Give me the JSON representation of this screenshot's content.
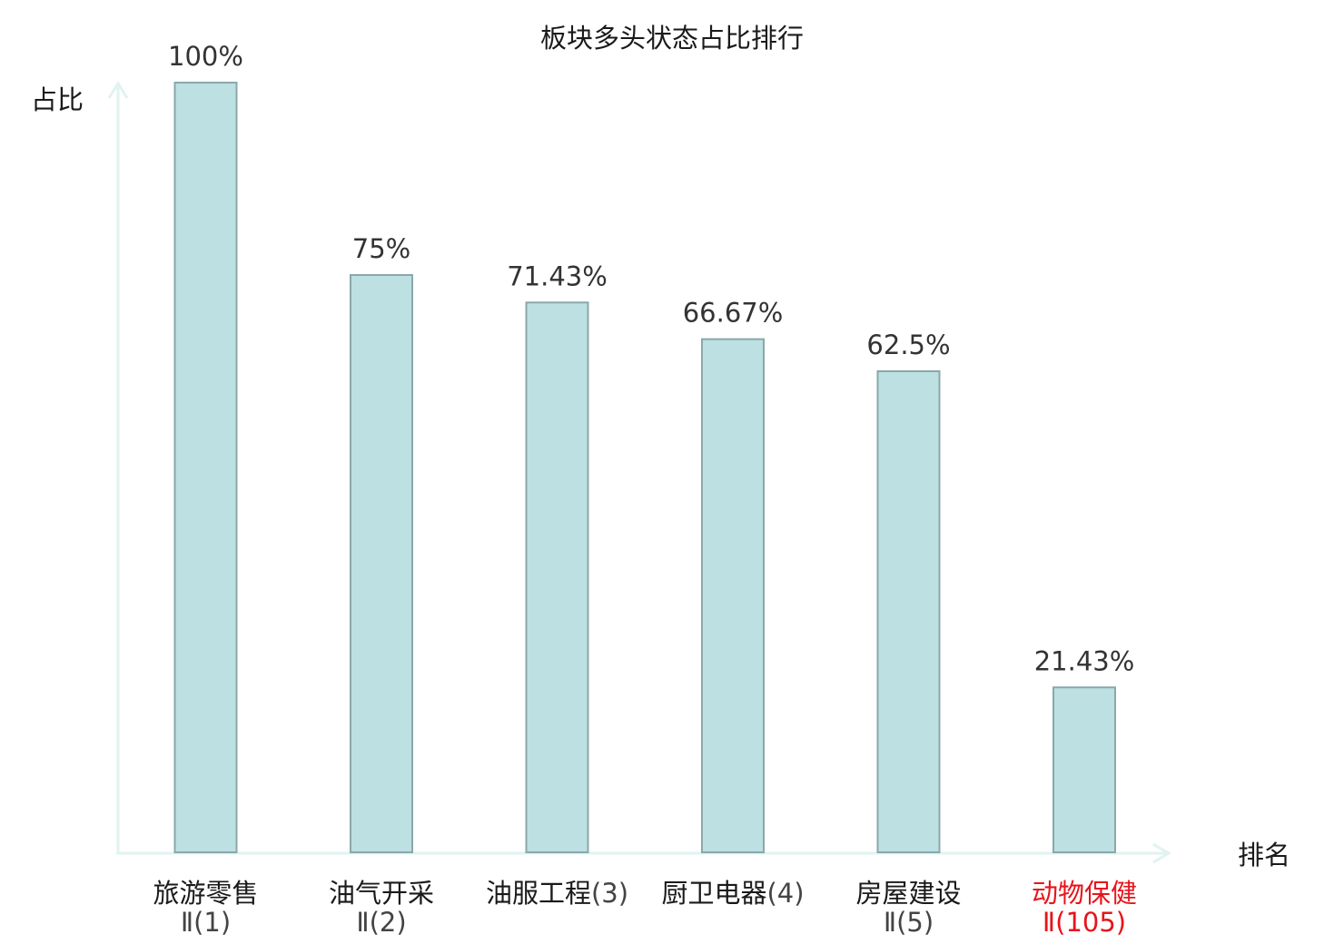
{
  "chart_data": {
    "type": "bar",
    "title": "板块多头状态占比排行",
    "ylabel": "占比",
    "xlabel": "排名",
    "ylim": [
      0,
      100
    ],
    "grid": false,
    "categories": [
      {
        "name": "旅游零售",
        "rank": "Ⅱ(1)",
        "highlight": false
      },
      {
        "name": "油气开采",
        "rank": "Ⅱ(2)",
        "highlight": false
      },
      {
        "name": "油服工程",
        "rank": "(3)",
        "highlight": false
      },
      {
        "name": "厨卫电器",
        "rank": "(4)",
        "highlight": false
      },
      {
        "name": "房屋建设",
        "rank": "Ⅱ(5)",
        "highlight": false
      },
      {
        "name": "动物保健",
        "rank": "Ⅱ(105)",
        "highlight": true
      }
    ],
    "values": [
      100,
      75,
      71.43,
      66.67,
      62.5,
      21.43
    ],
    "value_labels": [
      "100%",
      "75%",
      "71.43%",
      "66.67%",
      "62.5%",
      "21.43%"
    ]
  },
  "colors": {
    "bar_fill": "#bde0e3",
    "bar_stroke": "#8aa8aa",
    "axis": "#e0f3f1",
    "text": "#1a1a1a",
    "value_text": "#333333",
    "rank_text": "#444444",
    "highlight": "#e8141c"
  }
}
